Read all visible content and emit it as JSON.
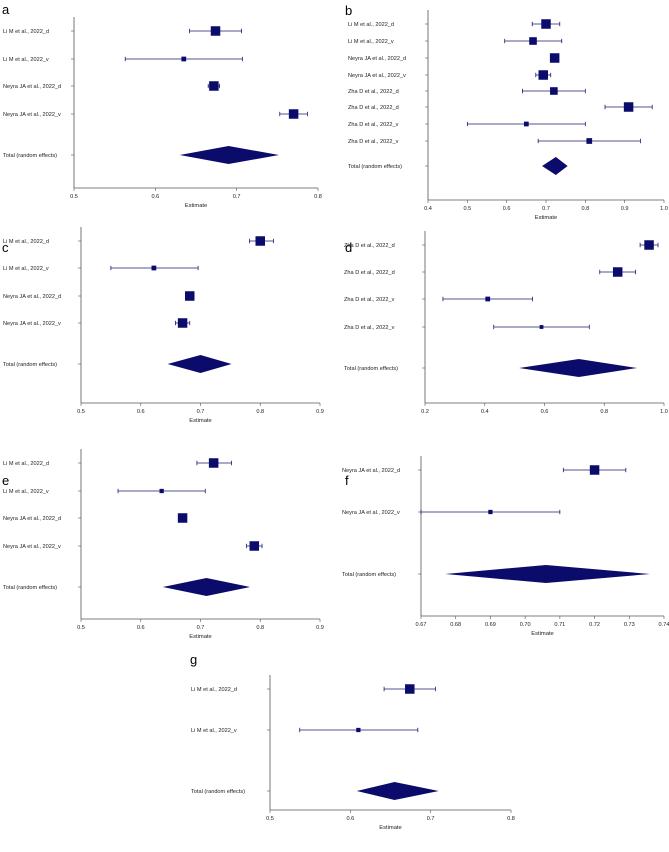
{
  "chart_data": [
    {
      "panel": "a",
      "type": "forest",
      "xlabel": "Estimate",
      "xlim": [
        0.5,
        0.8
      ],
      "xticks": [
        0.5,
        0.6,
        0.7,
        0.8
      ],
      "tick_labels": [
        "0.5",
        "0.6",
        "0.7",
        "0.8"
      ],
      "studies": [
        {
          "label": "Li M et al., 2022_d",
          "est": 0.674,
          "lo": 0.642,
          "hi": 0.706,
          "w": 1.0
        },
        {
          "label": "Li M et al., 2022_v",
          "est": 0.635,
          "lo": 0.563,
          "hi": 0.707,
          "w": 0.5
        },
        {
          "label": "Neyra JA et al., 2022_d",
          "est": 0.672,
          "lo": 0.665,
          "hi": 0.679,
          "w": 1.0
        },
        {
          "label": "Neyra JA et al., 2022_v",
          "est": 0.77,
          "lo": 0.753,
          "hi": 0.787,
          "w": 1.0
        }
      ],
      "pooled": {
        "label": "Total (random effects)",
        "est": 0.69,
        "lo": 0.63,
        "hi": 0.752
      }
    },
    {
      "panel": "b",
      "type": "forest",
      "xlabel": "Estimate",
      "xlim": [
        0.4,
        1.0
      ],
      "xticks": [
        0.4,
        0.5,
        0.6,
        0.7,
        0.8,
        0.9,
        1.0
      ],
      "tick_labels": [
        "0.4",
        "0.5",
        "0.6",
        "0.7",
        "0.8",
        "0.9",
        "1.0"
      ],
      "studies": [
        {
          "label": "Li M et al., 2022_d",
          "est": 0.7,
          "lo": 0.665,
          "hi": 0.735,
          "w": 1.0
        },
        {
          "label": "Li M et al., 2022_v",
          "est": 0.667,
          "lo": 0.595,
          "hi": 0.74,
          "w": 0.8
        },
        {
          "label": "Neyra JA et al., 2022_d",
          "est": 0.722,
          "lo": 0.714,
          "hi": 0.73,
          "w": 1.0
        },
        {
          "label": "Neyra JA et al., 2022_v",
          "est": 0.693,
          "lo": 0.674,
          "hi": 0.712,
          "w": 1.0
        },
        {
          "label": "Zha D et al., 2022_d",
          "est": 0.72,
          "lo": 0.64,
          "hi": 0.8,
          "w": 0.8
        },
        {
          "label": "Zha D et al., 2022_d",
          "est": 0.91,
          "lo": 0.85,
          "hi": 0.97,
          "w": 1.0
        },
        {
          "label": "Zha D et al., 2022_v",
          "est": 0.65,
          "lo": 0.5,
          "hi": 0.8,
          "w": 0.5
        },
        {
          "label": "Zha D et al., 2022_v",
          "est": 0.81,
          "lo": 0.68,
          "hi": 0.94,
          "w": 0.6
        }
      ],
      "pooled": {
        "label": "Total (random effects)",
        "est": 0.725,
        "lo": 0.69,
        "hi": 0.755
      }
    },
    {
      "panel": "c",
      "type": "forest",
      "xlabel": "Estimate",
      "xlim": [
        0.5,
        0.9
      ],
      "xticks": [
        0.5,
        0.6,
        0.7,
        0.8,
        0.9
      ],
      "tick_labels": [
        "0.5",
        "0.6",
        "0.7",
        "0.8",
        "0.9"
      ],
      "studies": [
        {
          "label": "Li M et al., 2022_d",
          "est": 0.8,
          "lo": 0.782,
          "hi": 0.822,
          "w": 1.0
        },
        {
          "label": "Li M et al., 2022_v",
          "est": 0.622,
          "lo": 0.55,
          "hi": 0.696,
          "w": 0.5
        },
        {
          "label": "Neyra JA et al., 2022_d",
          "est": 0.682,
          "lo": 0.675,
          "hi": 0.689,
          "w": 1.0
        },
        {
          "label": "Neyra JA et al., 2022_v",
          "est": 0.67,
          "lo": 0.658,
          "hi": 0.682,
          "w": 1.0
        }
      ],
      "pooled": {
        "label": "Total (random effects)",
        "est": 0.7,
        "lo": 0.645,
        "hi": 0.752
      }
    },
    {
      "panel": "d",
      "type": "forest",
      "xlabel": "",
      "xlim": [
        0.2,
        1.0
      ],
      "xticks": [
        0.2,
        0.4,
        0.6,
        0.8,
        1.0
      ],
      "tick_labels": [
        "0.2",
        "0.4",
        "0.6",
        "0.8",
        "1.0"
      ],
      "studies": [
        {
          "label": "Zha D et al., 2022_d",
          "est": 0.95,
          "lo": 0.92,
          "hi": 0.98,
          "w": 1.0
        },
        {
          "label": "Zha D et al., 2022_d",
          "est": 0.845,
          "lo": 0.785,
          "hi": 0.905,
          "w": 1.0
        },
        {
          "label": "Zha D et al., 2022_v",
          "est": 0.41,
          "lo": 0.26,
          "hi": 0.56,
          "w": 0.5
        },
        {
          "label": "Zha D et al., 2022_v",
          "est": 0.59,
          "lo": 0.43,
          "hi": 0.75,
          "w": 0.4
        }
      ],
      "pooled": {
        "label": "Total (random effects)",
        "est": 0.715,
        "lo": 0.515,
        "hi": 0.91
      }
    },
    {
      "panel": "e",
      "type": "forest",
      "xlabel": "Estimate",
      "xlim": [
        0.5,
        0.9
      ],
      "xticks": [
        0.5,
        0.6,
        0.7,
        0.8,
        0.9
      ],
      "tick_labels": [
        "0.5",
        "0.6",
        "0.7",
        "0.8",
        "0.9"
      ],
      "studies": [
        {
          "label": "Li M et al., 2022_d",
          "est": 0.722,
          "lo": 0.694,
          "hi": 0.752,
          "w": 1.0
        },
        {
          "label": "Li M et al., 2022_v",
          "est": 0.635,
          "lo": 0.562,
          "hi": 0.708,
          "w": 0.45
        },
        {
          "label": "Neyra JA et al., 2022_d",
          "est": 0.67,
          "lo": 0.664,
          "hi": 0.676,
          "w": 1.0
        },
        {
          "label": "Neyra JA et al., 2022_v",
          "est": 0.79,
          "lo": 0.777,
          "hi": 0.803,
          "w": 1.0
        }
      ],
      "pooled": {
        "label": "Total (random effects)",
        "est": 0.71,
        "lo": 0.637,
        "hi": 0.783
      }
    },
    {
      "panel": "f",
      "type": "forest",
      "xlabel": "Estimate",
      "xlim": [
        0.67,
        0.74
      ],
      "xticks": [
        0.67,
        0.68,
        0.69,
        0.7,
        0.71,
        0.72,
        0.73,
        0.74
      ],
      "tick_labels": [
        "0.67",
        "0.68",
        "0.69",
        "0.70",
        "0.71",
        "0.72",
        "0.73",
        "0.74"
      ],
      "studies": [
        {
          "label": "Neyra JA et al., 2022_d",
          "est": 0.72,
          "lo": 0.711,
          "hi": 0.729,
          "w": 1.0
        },
        {
          "label": "Neyra JA et al., 2022_v",
          "est": 0.69,
          "lo": 0.67,
          "hi": 0.71,
          "w": 0.45
        }
      ],
      "pooled": {
        "label": "Total (random effects)",
        "est": 0.706,
        "lo": 0.677,
        "hi": 0.736
      }
    },
    {
      "panel": "g",
      "type": "forest",
      "xlabel": "Estimate",
      "xlim": [
        0.5,
        0.8
      ],
      "xticks": [
        0.5,
        0.6,
        0.7,
        0.8
      ],
      "tick_labels": [
        "0.5",
        "0.6",
        "0.7",
        "0.8"
      ],
      "studies": [
        {
          "label": "Li M et al., 2022_d",
          "est": 0.674,
          "lo": 0.642,
          "hi": 0.706,
          "w": 1.0
        },
        {
          "label": "Li M et al., 2022_v",
          "est": 0.61,
          "lo": 0.537,
          "hi": 0.684,
          "w": 0.45
        }
      ],
      "pooled": {
        "label": "Total (random effects)",
        "est": 0.655,
        "lo": 0.608,
        "hi": 0.71
      }
    }
  ],
  "colors": {
    "marker": "#0b0b6b",
    "ci": "#1a1a6e",
    "axis": "#555555"
  }
}
